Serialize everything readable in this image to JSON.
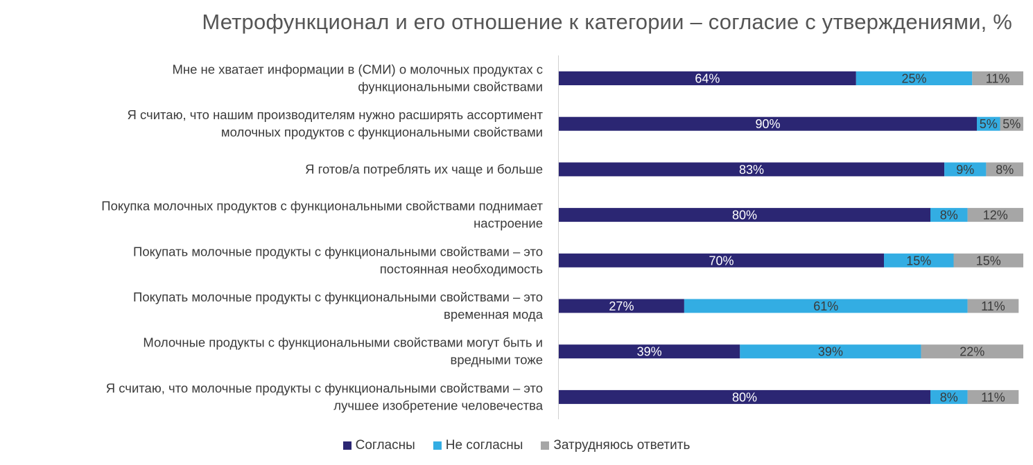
{
  "chart_data": {
    "type": "bar",
    "orientation": "horizontal",
    "stacked": true,
    "title": "Метрофункционал и его отношение к категории – согласие с утверждениями, %",
    "categories": [
      [
        "Мне не хватает информации в (СМИ) о молочных продуктах с",
        "функциональными свойствами"
      ],
      [
        "Я считаю, что нашим производителям нужно расширять ассортимент",
        "молочных продуктов с функциональными свойствами"
      ],
      [
        "Я готов/а потреблять их чаще и больше"
      ],
      [
        "Покупка молочных продуктов с функциональными свойствами поднимает",
        "настроение"
      ],
      [
        "Покупать молочные продукты с функциональными свойствами – это",
        "постоянная необходимость"
      ],
      [
        "Покупать молочные продукты с функциональными свойствами – это",
        "временная мода"
      ],
      [
        "Молочные продукты с функциональными свойствами могут быть и",
        "вредными тоже"
      ],
      [
        "Я считаю, что молочные продукты с функциональными свойствами – это",
        "лучшее изобретение человечества"
      ]
    ],
    "series": [
      {
        "name": "Согласны",
        "color": "#2b2673",
        "text_color": "#ffffff",
        "values": [
          64,
          90,
          83,
          80,
          70,
          27,
          39,
          80
        ]
      },
      {
        "name": "Не согласны",
        "color": "#33ade3",
        "text_color": "#3a3a3a",
        "values": [
          25,
          5,
          9,
          8,
          15,
          61,
          39,
          8
        ]
      },
      {
        "name": "Затрудняюсь ответить",
        "color": "#a6a6a6",
        "text_color": "#3a3a3a",
        "values": [
          11,
          5,
          8,
          12,
          15,
          11,
          22,
          11
        ]
      }
    ],
    "value_suffix": "%",
    "xlim": [
      0,
      100
    ],
    "legend_position": "bottom",
    "grid": false
  }
}
